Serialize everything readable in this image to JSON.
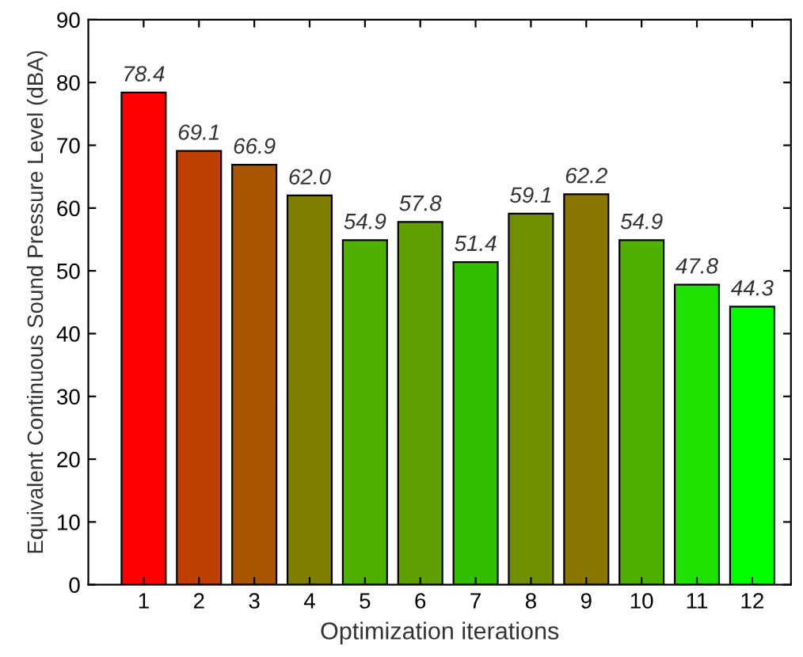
{
  "chart_data": {
    "type": "bar",
    "xlabel": "Optimization iterations",
    "ylabel": "Equivalent Continuous Sound Pressure Level (dBA)",
    "categories": [
      "1",
      "2",
      "3",
      "4",
      "5",
      "6",
      "7",
      "8",
      "9",
      "10",
      "11",
      "12"
    ],
    "values": [
      78.4,
      69.1,
      66.9,
      62.0,
      54.9,
      57.8,
      51.4,
      59.1,
      62.2,
      54.9,
      47.8,
      44.3
    ],
    "colors": [
      "#ff0000",
      "#c04000",
      "#aa5500",
      "#808000",
      "#50b000",
      "#60a000",
      "#30c000",
      "#709000",
      "#8a7500",
      "#50b000",
      "#20e000",
      "#00ff00"
    ],
    "value_labels": [
      "78.4",
      "69.1",
      "66.9",
      "62.0",
      "54.9",
      "57.8",
      "51.4",
      "59.1",
      "62.2",
      "54.9",
      "47.8",
      "44.3"
    ],
    "ylim": [
      0,
      90
    ],
    "yticks": [
      0,
      10,
      20,
      30,
      40,
      50,
      60,
      70,
      80,
      90
    ],
    "grid": false
  }
}
